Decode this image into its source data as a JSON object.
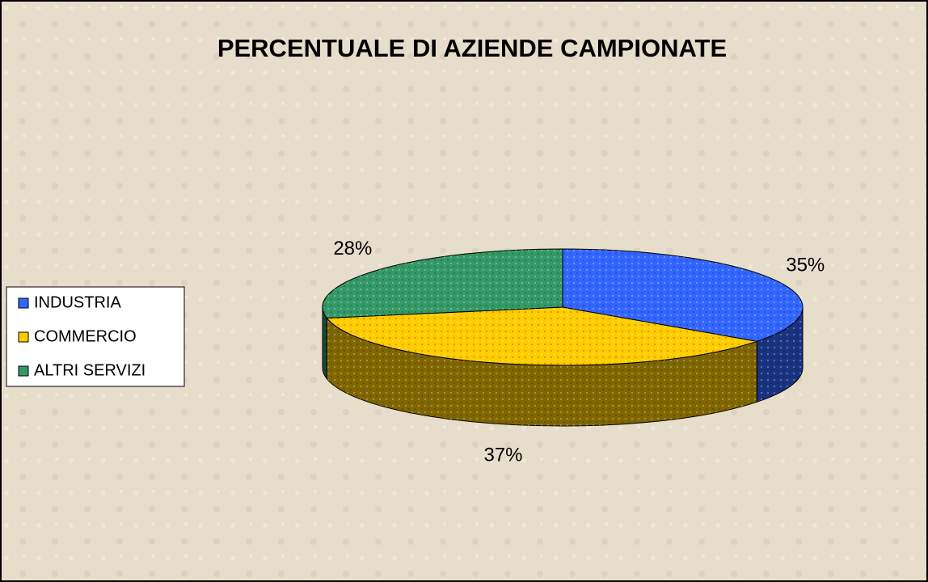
{
  "chart_data": {
    "type": "pie",
    "title": "PERCENTUALE DI AZIENDE CAMPIONATE",
    "categories": [
      "INDUSTRIA",
      "COMMERCIO",
      "ALTRI SERVIZI"
    ],
    "values": [
      35,
      37,
      28
    ],
    "value_labels": [
      "35%",
      "37%",
      "28%"
    ],
    "colors": [
      "#3366ff",
      "#ffcc00",
      "#339966"
    ],
    "legend": "left"
  }
}
